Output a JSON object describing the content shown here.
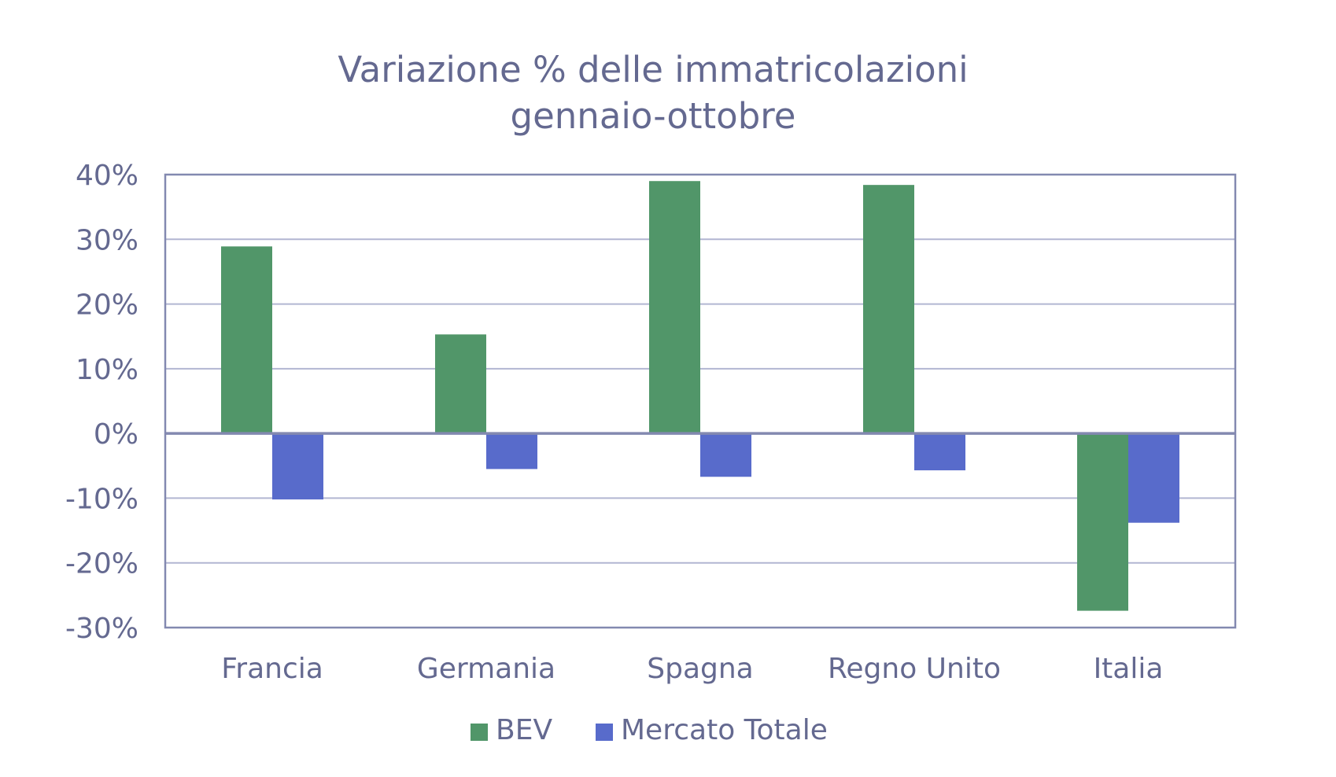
{
  "chart_data": {
    "type": "bar",
    "title": "Variazione % delle immatricolazioni",
    "subtitle": "gennaio-ottobre",
    "categories": [
      "Francia",
      "Germania",
      "Spagna",
      "Regno Unito",
      "Italia"
    ],
    "series": [
      {
        "name": "BEV",
        "values": [
          28.9,
          15.3,
          39.0,
          38.4,
          -27.4
        ],
        "color": "#519669"
      },
      {
        "name": "Mercato Totale",
        "values": [
          -10.2,
          -5.5,
          -6.7,
          -5.7,
          -13.8
        ],
        "color": "#586bcb"
      }
    ],
    "ylim": [
      -30,
      40
    ],
    "yticks": [
      40,
      30,
      20,
      10,
      0,
      -10,
      -20,
      -30
    ],
    "ytick_labels": [
      "40%",
      "30%",
      "20%",
      "10%",
      "0%",
      "-10%",
      "-20%",
      "-30%"
    ],
    "xlabel": "",
    "ylabel": "",
    "grid": true,
    "legend_position": "bottom",
    "text_color": "#646990",
    "axis_color": "#8389b0"
  }
}
